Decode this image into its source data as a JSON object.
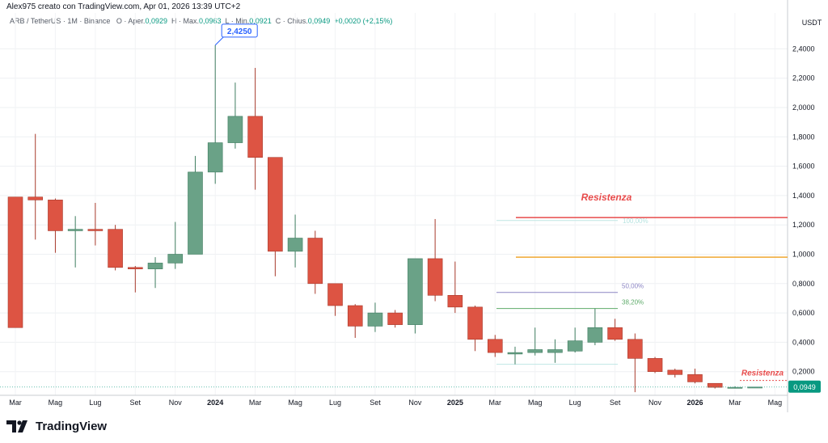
{
  "header": {
    "attribution": "Alex975 creato con TradingView.com, Apr 01, 2026 13:39 UTC+2"
  },
  "legend": {
    "symbol": "ARB / TetherUS · 1M · Binance",
    "open_label": "O · Aper.",
    "open": "0,0929",
    "high_label": "H · Max.",
    "high": "0,0963",
    "low_label": "L · Min.",
    "low": "0,0921",
    "close_label": "C · Chius.",
    "close": "0,0949",
    "change": "+0,0020 (+2,15%)"
  },
  "footer": {
    "brand": "TradingView",
    "logo_icon": "tradingview-logo-icon"
  },
  "colors": {
    "up": "#6aa287",
    "down": "#dd5443",
    "resistance_red": "#e84b4b",
    "orange": "#f0a830",
    "purple": "#8c85c4",
    "green_fib": "#5eab6a",
    "label_blue": "#2962ff"
  },
  "chart_data": {
    "type": "candlestick",
    "y_axis_unit": "USDT",
    "ylim": [
      0.0,
      2.6
    ],
    "y_ticks": [
      "2,4000",
      "2,2000",
      "2,0000",
      "1,8000",
      "1,6000",
      "1,4000",
      "1,2000",
      "1,0000",
      "0,8000",
      "0,6000",
      "0,4000",
      "0,2000"
    ],
    "y_tick_values": [
      2.4,
      2.2,
      2.0,
      1.8,
      1.6,
      1.4,
      1.2,
      1.0,
      0.8,
      0.6,
      0.4,
      0.2
    ],
    "x_labels": [
      "Mar",
      "Mag",
      "Lug",
      "Set",
      "Nov",
      "2024",
      "Mar",
      "Mag",
      "Lug",
      "Set",
      "Nov",
      "2025",
      "Mar",
      "Mag",
      "Lug",
      "Set",
      "Nov",
      "2026",
      "Mar",
      "Mag"
    ],
    "x_label_bold": [
      false,
      false,
      false,
      false,
      false,
      true,
      false,
      false,
      false,
      false,
      false,
      true,
      false,
      false,
      false,
      false,
      false,
      true,
      false,
      false
    ],
    "candles": [
      {
        "date": "2023-03",
        "o": 1.39,
        "h": 1.39,
        "l": 0.5,
        "c": 0.5
      },
      {
        "date": "2023-04",
        "o": 1.39,
        "h": 1.82,
        "l": 1.1,
        "c": 1.37
      },
      {
        "date": "2023-05",
        "o": 1.37,
        "h": 1.38,
        "l": 1.01,
        "c": 1.16
      },
      {
        "date": "2023-06",
        "o": 1.16,
        "h": 1.26,
        "l": 0.91,
        "c": 1.17
      },
      {
        "date": "2023-07",
        "o": 1.17,
        "h": 1.35,
        "l": 1.06,
        "c": 1.16
      },
      {
        "date": "2023-08",
        "o": 1.17,
        "h": 1.2,
        "l": 0.89,
        "c": 0.91
      },
      {
        "date": "2023-09",
        "o": 0.91,
        "h": 0.92,
        "l": 0.74,
        "c": 0.9
      },
      {
        "date": "2023-10",
        "o": 0.9,
        "h": 0.98,
        "l": 0.77,
        "c": 0.94
      },
      {
        "date": "2023-11",
        "o": 0.94,
        "h": 1.22,
        "l": 0.9,
        "c": 1.0
      },
      {
        "date": "2023-12",
        "o": 1.0,
        "h": 1.67,
        "l": 1.0,
        "c": 1.56
      },
      {
        "date": "2024-01",
        "o": 1.56,
        "h": 2.425,
        "l": 1.48,
        "c": 1.76
      },
      {
        "date": "2024-02",
        "o": 1.76,
        "h": 2.17,
        "l": 1.72,
        "c": 1.94
      },
      {
        "date": "2024-03",
        "o": 1.94,
        "h": 2.27,
        "l": 1.44,
        "c": 1.66
      },
      {
        "date": "2024-04",
        "o": 1.66,
        "h": 1.66,
        "l": 0.85,
        "c": 1.02
      },
      {
        "date": "2024-05",
        "o": 1.02,
        "h": 1.27,
        "l": 0.91,
        "c": 1.11
      },
      {
        "date": "2024-06",
        "o": 1.11,
        "h": 1.16,
        "l": 0.73,
        "c": 0.8
      },
      {
        "date": "2024-07",
        "o": 0.8,
        "h": 0.8,
        "l": 0.58,
        "c": 0.65
      },
      {
        "date": "2024-08",
        "o": 0.65,
        "h": 0.66,
        "l": 0.43,
        "c": 0.51
      },
      {
        "date": "2024-09",
        "o": 0.51,
        "h": 0.67,
        "l": 0.47,
        "c": 0.6
      },
      {
        "date": "2024-10",
        "o": 0.6,
        "h": 0.62,
        "l": 0.5,
        "c": 0.52
      },
      {
        "date": "2024-11",
        "o": 0.52,
        "h": 0.97,
        "l": 0.46,
        "c": 0.97
      },
      {
        "date": "2024-12",
        "o": 0.97,
        "h": 1.24,
        "l": 0.68,
        "c": 0.72
      },
      {
        "date": "2025-01",
        "o": 0.72,
        "h": 0.95,
        "l": 0.6,
        "c": 0.64
      },
      {
        "date": "2025-02",
        "o": 0.64,
        "h": 0.65,
        "l": 0.34,
        "c": 0.42
      },
      {
        "date": "2025-03",
        "o": 0.42,
        "h": 0.45,
        "l": 0.3,
        "c": 0.33
      },
      {
        "date": "2025-04",
        "o": 0.32,
        "h": 0.37,
        "l": 0.25,
        "c": 0.33
      },
      {
        "date": "2025-05",
        "o": 0.33,
        "h": 0.5,
        "l": 0.31,
        "c": 0.35
      },
      {
        "date": "2025-06",
        "o": 0.33,
        "h": 0.42,
        "l": 0.26,
        "c": 0.35
      },
      {
        "date": "2025-07",
        "o": 0.34,
        "h": 0.5,
        "l": 0.33,
        "c": 0.41
      },
      {
        "date": "2025-08",
        "o": 0.4,
        "h": 0.63,
        "l": 0.38,
        "c": 0.5
      },
      {
        "date": "2025-09",
        "o": 0.5,
        "h": 0.56,
        "l": 0.41,
        "c": 0.42
      },
      {
        "date": "2025-10",
        "o": 0.42,
        "h": 0.46,
        "l": 0.06,
        "c": 0.29
      },
      {
        "date": "2025-11",
        "o": 0.29,
        "h": 0.3,
        "l": 0.19,
        "c": 0.2
      },
      {
        "date": "2025-12",
        "o": 0.21,
        "h": 0.22,
        "l": 0.16,
        "c": 0.18
      },
      {
        "date": "2026-01",
        "o": 0.18,
        "h": 0.22,
        "l": 0.12,
        "c": 0.13
      },
      {
        "date": "2026-02",
        "o": 0.12,
        "h": 0.12,
        "l": 0.085,
        "c": 0.093
      },
      {
        "date": "2026-03",
        "o": 0.093,
        "h": 0.1,
        "l": 0.085,
        "c": 0.093
      },
      {
        "date": "2026-04",
        "o": 0.0929,
        "h": 0.0963,
        "l": 0.0921,
        "c": 0.0949
      }
    ],
    "annotations": {
      "high_label": "2,4250",
      "last_price": "0,0949",
      "resistance_top": {
        "label": "Resistenza",
        "value": 1.25
      },
      "orange_line": {
        "value": 0.98
      },
      "resistance_bottom": {
        "label": "Resistenza",
        "value": 0.14
      },
      "fib_100": {
        "label": "100,00%",
        "value": 1.23
      },
      "fib_50": {
        "label": "50,00%",
        "value": 0.74
      },
      "fib_382": {
        "label": "38,20%",
        "value": 0.63
      },
      "fib_0": {
        "value": 0.25
      }
    }
  }
}
